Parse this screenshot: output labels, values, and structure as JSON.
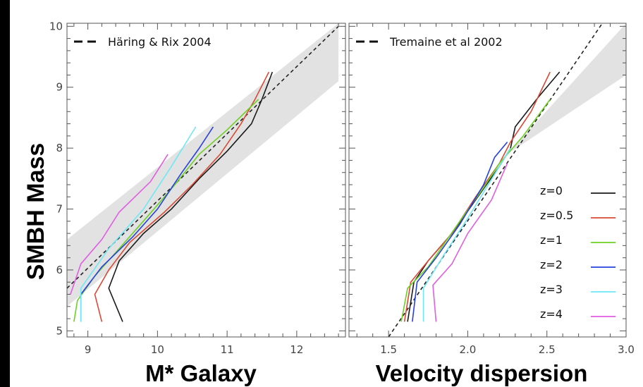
{
  "ylabel": "SMBH Mass",
  "chart_data": [
    {
      "type": "line",
      "xlabel": "M*   Galaxy",
      "ylabel": "SMBH Mass",
      "xlim": [
        8.7,
        12.7
      ],
      "ylim": [
        4.9,
        10.05
      ],
      "xticks": [
        9,
        10,
        11,
        12
      ],
      "yticks": [
        5,
        6,
        7,
        8,
        9,
        10
      ],
      "legend_position": "top-left",
      "reference": {
        "label": "Häring & Rix 2004",
        "style": "dashed",
        "points": [
          [
            8.7,
            5.7
          ],
          [
            12.6,
            10.0
          ]
        ],
        "band": {
          "x": [
            8.7,
            12.6
          ],
          "lower": [
            5.4,
            9.1
          ],
          "upper": [
            6.5,
            10.05
          ]
        }
      },
      "series": [
        {
          "name": "z=0",
          "color": "#1a1a1a",
          "points": [
            [
              9.5,
              5.15
            ],
            [
              9.3,
              5.7
            ],
            [
              9.45,
              6.15
            ],
            [
              9.8,
              6.6
            ],
            [
              10.2,
              7.0
            ],
            [
              10.6,
              7.5
            ],
            [
              11.0,
              7.95
            ],
            [
              11.35,
              8.4
            ],
            [
              11.5,
              8.8
            ],
            [
              11.65,
              9.25
            ]
          ]
        },
        {
          "name": "z=0.5",
          "color": "#d84a35",
          "points": [
            [
              9.2,
              5.15
            ],
            [
              9.1,
              5.6
            ],
            [
              9.3,
              6.0
            ],
            [
              9.6,
              6.45
            ],
            [
              10.1,
              6.95
            ],
            [
              10.5,
              7.4
            ],
            [
              10.9,
              7.9
            ],
            [
              11.2,
              8.4
            ],
            [
              11.4,
              8.8
            ],
            [
              11.6,
              9.25
            ]
          ]
        },
        {
          "name": "z=1",
          "color": "#6fd024",
          "points": [
            [
              8.8,
              5.15
            ],
            [
              8.85,
              5.5
            ],
            [
              9.1,
              5.9
            ],
            [
              9.45,
              6.35
            ],
            [
              9.95,
              7.0
            ],
            [
              10.25,
              7.4
            ],
            [
              10.6,
              7.9
            ],
            [
              11.0,
              8.3
            ],
            [
              11.45,
              8.8
            ]
          ]
        },
        {
          "name": "z=2",
          "color": "#2741dd",
          "points": [
            [
              8.9,
              5.15
            ],
            [
              8.9,
              5.6
            ],
            [
              9.2,
              6.05
            ],
            [
              9.65,
              6.55
            ],
            [
              10.0,
              7.0
            ],
            [
              10.35,
              7.6
            ],
            [
              10.6,
              8.0
            ],
            [
              10.8,
              8.35
            ]
          ]
        },
        {
          "name": "z=3",
          "color": "#6fe7f5",
          "points": [
            [
              8.9,
              5.15
            ],
            [
              8.9,
              5.7
            ],
            [
              9.3,
              6.35
            ],
            [
              9.8,
              7.0
            ],
            [
              10.2,
              7.7
            ],
            [
              10.55,
              8.35
            ]
          ]
        },
        {
          "name": "z=4",
          "color": "#e05ee2",
          "points": [
            [
              8.75,
              5.6
            ],
            [
              8.9,
              6.1
            ],
            [
              9.2,
              6.5
            ],
            [
              9.45,
              6.95
            ],
            [
              9.9,
              7.45
            ],
            [
              10.15,
              7.9
            ]
          ]
        }
      ]
    },
    {
      "type": "line",
      "xlabel": "Velocity dispersion",
      "xlim": [
        1.25,
        3.0
      ],
      "ylim": [
        4.9,
        10.05
      ],
      "xticks": [
        1.5,
        2.0,
        2.5,
        3.0
      ],
      "xtick_labels": [
        "1.5",
        "2.0",
        "2.5",
        "3.0"
      ],
      "legend_position": "top-left; series legend right",
      "reference": {
        "label": "Tremaine et al 2002",
        "style": "dashed",
        "points": [
          [
            1.5,
            4.9
          ],
          [
            2.85,
            10.05
          ]
        ],
        "band": {
          "x": [
            1.25,
            2.25,
            3.0
          ],
          "lower": [
            4.9,
            7.9,
            9.2
          ],
          "upper": [
            4.9,
            7.9,
            10.05
          ]
        }
      },
      "series": [
        {
          "name": "z=0",
          "color": "#1a1a1a",
          "points": [
            [
              1.62,
              5.15
            ],
            [
              1.66,
              5.8
            ],
            [
              1.75,
              6.15
            ],
            [
              1.9,
              6.6
            ],
            [
              2.05,
              7.15
            ],
            [
              2.2,
              7.7
            ],
            [
              2.27,
              8.0
            ],
            [
              2.3,
              8.35
            ],
            [
              2.45,
              8.85
            ],
            [
              2.58,
              9.25
            ]
          ]
        },
        {
          "name": "z=0.5",
          "color": "#d84a35",
          "points": [
            [
              1.6,
              5.15
            ],
            [
              1.64,
              5.8
            ],
            [
              1.75,
              6.15
            ],
            [
              1.9,
              6.6
            ],
            [
              2.05,
              7.2
            ],
            [
              2.2,
              7.75
            ],
            [
              2.27,
              8.1
            ],
            [
              2.4,
              8.6
            ],
            [
              2.52,
              9.25
            ]
          ]
        },
        {
          "name": "z=1",
          "color": "#6fd024",
          "points": [
            [
              1.58,
              5.15
            ],
            [
              1.62,
              5.7
            ],
            [
              1.75,
              6.05
            ],
            [
              1.95,
              6.8
            ],
            [
              2.1,
              7.35
            ],
            [
              2.2,
              7.75
            ],
            [
              2.35,
              8.2
            ],
            [
              2.52,
              8.8
            ]
          ]
        },
        {
          "name": "z=2",
          "color": "#2741dd",
          "points": [
            [
              1.65,
              5.15
            ],
            [
              1.68,
              5.8
            ],
            [
              1.8,
              6.2
            ],
            [
              1.95,
              6.75
            ],
            [
              2.1,
              7.4
            ],
            [
              2.17,
              7.85
            ],
            [
              2.25,
              8.1
            ]
          ]
        },
        {
          "name": "z=3",
          "color": "#6fe7f5",
          "points": [
            [
              1.72,
              5.15
            ],
            [
              1.72,
              5.7
            ],
            [
              1.85,
              6.25
            ],
            [
              2.0,
              6.85
            ],
            [
              2.2,
              7.7
            ],
            [
              2.27,
              8.0
            ]
          ]
        },
        {
          "name": "z=4",
          "color": "#e05ee2",
          "points": [
            [
              1.8,
              5.15
            ],
            [
              1.78,
              5.75
            ],
            [
              1.9,
              6.1
            ],
            [
              2.0,
              6.6
            ],
            [
              2.15,
              7.15
            ],
            [
              2.25,
              7.75
            ]
          ]
        }
      ]
    }
  ]
}
